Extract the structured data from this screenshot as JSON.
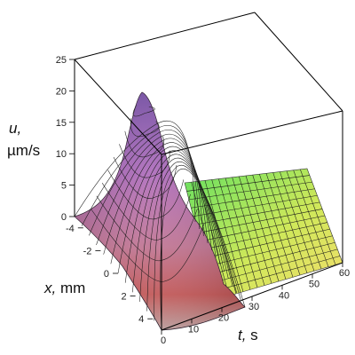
{
  "chart_data": {
    "type": "surface3d",
    "function": "gaussian pulse u(x, t); peak at x = 0, t = 0",
    "z_axis": {
      "label_var": "u,",
      "label_unit": "µm/s",
      "range": [
        0,
        25
      ],
      "ticks": [
        "0",
        "5",
        "10",
        "15",
        "20",
        "25"
      ]
    },
    "x_axis": {
      "label_var": "x,",
      "label_unit": " mm",
      "range": [
        -5,
        5
      ],
      "ticks": [
        "-4",
        "-2",
        "0",
        "2",
        "4"
      ]
    },
    "t_axis": {
      "label_var": "t,",
      "label_unit": " s",
      "range": [
        0,
        60
      ],
      "ticks": [
        "0",
        "10",
        "20",
        "30",
        "40",
        "50",
        "60"
      ]
    },
    "peak": {
      "x": 0,
      "t": 0,
      "u": 20
    },
    "surface_samples": [
      {
        "x": 0,
        "t": 0,
        "u": 20
      },
      {
        "x": 0,
        "t": 10,
        "u": 8.5
      },
      {
        "x": 0,
        "t": 20,
        "u": 1.2
      },
      {
        "x": 0,
        "t": 30,
        "u": 0
      },
      {
        "x": -5,
        "t": 0,
        "u": 1
      },
      {
        "x": 5,
        "t": 0,
        "u": 1
      }
    ],
    "colormap": "height-based: red/pink (low, near t=0) → purple (high); green → yellow (flat region)",
    "grid": true,
    "box": true
  }
}
